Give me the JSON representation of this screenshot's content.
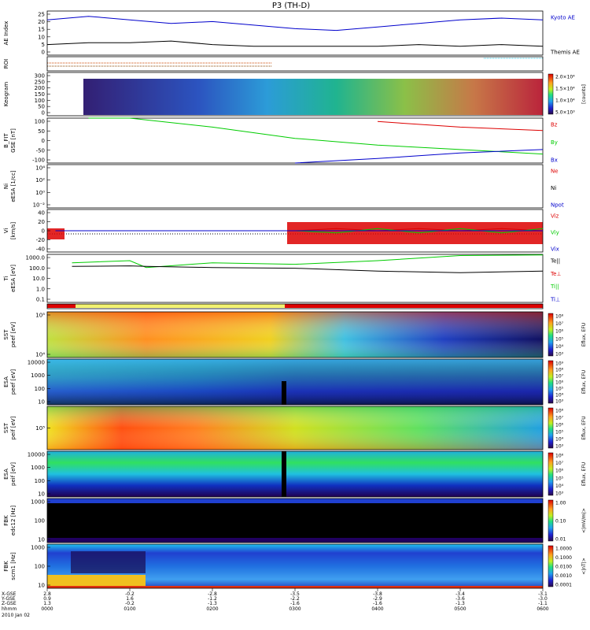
{
  "title": "P3 (TH-D)",
  "colors": {
    "black": "#000000",
    "blue": "#0000cc",
    "red": "#dd0000",
    "green": "#00cc00",
    "cyan": "#33ccee",
    "yellow": "#f2f270"
  },
  "panels": [
    {
      "id": "ae",
      "ylabel": "AE Index",
      "units": "",
      "yticks": [
        "25",
        "20",
        "15",
        "10",
        "5",
        "0"
      ],
      "legend": [
        {
          "text": "Kyoto AE",
          "color": "#0000cc"
        },
        {
          "text": "Themis AE",
          "color": "#000000"
        }
      ]
    },
    {
      "id": "roi",
      "ylabel": "ROI",
      "units": "",
      "yticks": [],
      "legend": []
    },
    {
      "id": "keogram",
      "ylabel": "Keogram",
      "units": "",
      "yticks": [
        "300",
        "250",
        "200",
        "150",
        "100",
        "50",
        "0"
      ],
      "colorbar": {
        "labels": [
          "2.0×10⁴",
          "1.5×10⁴",
          "1.0×10⁴",
          "5.0×10³"
        ],
        "title": "[counts]"
      }
    },
    {
      "id": "bfit",
      "ylabel": "B_FIT",
      "units": "GSE [nT]",
      "yticks": [
        "100",
        "50",
        "0",
        "-50",
        "-100"
      ],
      "legend": [
        {
          "text": "Bz",
          "color": "#dd0000"
        },
        {
          "text": "By",
          "color": "#00cc00"
        },
        {
          "text": "Bx",
          "color": "#0000cc"
        }
      ]
    },
    {
      "id": "ni",
      "ylabel": "Ni",
      "units": "eESA [1/cc]",
      "yticks": [
        "10⁴",
        "10²",
        "10⁰",
        "10⁻²"
      ],
      "legend": [
        {
          "text": "Ne",
          "color": "#dd0000"
        },
        {
          "text": "Ni",
          "color": "#000000"
        },
        {
          "text": "Npot",
          "color": "#0000cc"
        }
      ]
    },
    {
      "id": "vi",
      "ylabel": "Vi",
      "units": "[km/s]",
      "yticks": [
        "40",
        "20",
        "0",
        "-20",
        "-40"
      ],
      "legend": [
        {
          "text": "Viz",
          "color": "#dd0000"
        },
        {
          "text": "Viy",
          "color": "#00cc00"
        },
        {
          "text": "Vix",
          "color": "#0000cc"
        }
      ]
    },
    {
      "id": "ti",
      "ylabel": "Ti",
      "units": "eESA [eV]",
      "yticks": [
        "1000.0",
        "100.0",
        "10.0",
        "1.0",
        "0.1"
      ],
      "legend": [
        {
          "text": "Te||",
          "color": "#000000"
        },
        {
          "text": "Te⊥",
          "color": "#dd0000"
        },
        {
          "text": "Ti||",
          "color": "#00cc00"
        },
        {
          "text": "Ti⊥",
          "color": "#0000cc"
        }
      ]
    },
    {
      "id": "mode",
      "ylabel": "",
      "units": "",
      "yticks": [],
      "legend": []
    },
    {
      "id": "sst_e",
      "ylabel": "SST",
      "units": "peef [eV]",
      "yticks": [
        "10⁵",
        "10⁴"
      ],
      "colorbar": {
        "labels": [
          "10⁸",
          "10⁷",
          "10⁶",
          "10⁵",
          "10⁴",
          "10³"
        ],
        "title": "Eflux, EFU"
      }
    },
    {
      "id": "esa_e",
      "ylabel": "ESA",
      "units": "peef [eV]",
      "yticks": [
        "10000",
        "1000",
        "100",
        "10"
      ],
      "colorbar": {
        "labels": [
          "10⁹",
          "10⁸",
          "10⁷",
          "10⁶",
          "10⁵",
          "10⁴",
          "10³"
        ],
        "title": "Eflux, EFU"
      }
    },
    {
      "id": "sst_i",
      "ylabel": "SST",
      "units": "peif [eV]",
      "yticks": [
        "10⁵"
      ],
      "colorbar": {
        "labels": [
          "10⁸",
          "10⁷",
          "10⁶",
          "10⁵",
          "10⁴",
          "10³"
        ],
        "title": "Eflux, EFU"
      }
    },
    {
      "id": "esa_i",
      "ylabel": "ESA",
      "units": "peif [eV]",
      "yticks": [
        "10000",
        "1000",
        "100",
        "10"
      ],
      "colorbar": {
        "labels": [
          "10⁸",
          "10⁷",
          "10⁶",
          "10⁵",
          "10⁴",
          "10³"
        ],
        "title": "Eflux, EFU"
      }
    },
    {
      "id": "fbk_e",
      "ylabel": "FBK",
      "units": "edc12 [Hz]",
      "yticks": [
        "1000",
        "100",
        "10"
      ],
      "colorbar": {
        "labels": [
          "1.00",
          "0.10",
          "0.01"
        ],
        "title": "<|mV/m|>"
      }
    },
    {
      "id": "fbk_b",
      "ylabel": "FBK",
      "units": "scm1 [Hz]",
      "yticks": [
        "1000",
        "100",
        "10"
      ],
      "colorbar": {
        "labels": [
          "1.0000",
          "0.1000",
          "0.0100",
          "0.0010",
          "0.0001"
        ],
        "title": "<|nT|>"
      }
    }
  ],
  "time_axis": {
    "row_labels": [
      "X-GSE",
      "Y-GSE",
      "Z-GSE",
      "hhmm",
      "2010 Jan 02"
    ],
    "ticks": [
      {
        "x_gse": "2.8",
        "y_gse": "0.9",
        "z_gse": "1.3",
        "hhmm": "0000"
      },
      {
        "x_gse": "-0.2",
        "y_gse": "1.6",
        "z_gse": "-0.2",
        "hhmm": "0100"
      },
      {
        "x_gse": "-2.8",
        "y_gse": "-1.2",
        "z_gse": "-1.3",
        "hhmm": "0200"
      },
      {
        "x_gse": "-3.5",
        "y_gse": "-2.2",
        "z_gse": "-1.6",
        "hhmm": "0300"
      },
      {
        "x_gse": "-3.8",
        "y_gse": "-2.9",
        "z_gse": "-1.6",
        "hhmm": "0400"
      },
      {
        "x_gse": "-3.4",
        "y_gse": "-3.6",
        "z_gse": "-1.3",
        "hhmm": "0500"
      },
      {
        "x_gse": "-3.1",
        "y_gse": "-3.0",
        "z_gse": "-1.1",
        "hhmm": "0600"
      }
    ]
  },
  "chart_data": [
    {
      "type": "line",
      "panel": "ae",
      "ylim": [
        0,
        25
      ],
      "x": [
        0,
        0.5,
        1,
        1.5,
        2,
        2.5,
        3,
        3.5,
        4,
        4.5,
        5,
        5.5,
        6
      ],
      "series": [
        {
          "name": "Kyoto AE",
          "values": [
            20,
            22,
            20,
            18,
            19,
            17,
            15,
            14,
            16,
            18,
            20,
            21,
            20
          ]
        },
        {
          "name": "Themis AE",
          "values": [
            6,
            7,
            7,
            8,
            6,
            5,
            5,
            5,
            5,
            6,
            5,
            6,
            5
          ]
        }
      ]
    },
    {
      "type": "line",
      "panel": "bfit",
      "ylim": [
        -100,
        100
      ],
      "x": [
        0.5,
        1,
        2,
        3,
        4,
        5,
        6
      ],
      "series": [
        {
          "name": "Bz",
          "values": [
            null,
            null,
            null,
            null,
            85,
            60,
            45
          ]
        },
        {
          "name": "By",
          "values": [
            100,
            100,
            60,
            10,
            -20,
            -40,
            -60
          ]
        },
        {
          "name": "Bx",
          "values": [
            null,
            null,
            null,
            -100,
            -80,
            -55,
            -40
          ]
        }
      ]
    },
    {
      "type": "line",
      "panel": "vi",
      "ylim": [
        -50,
        50
      ],
      "x": [
        0.1,
        0.3,
        3.0,
        3.5,
        4,
        4.5,
        5,
        5.5,
        6
      ],
      "series": [
        {
          "name": "Viz",
          "values": [
            0,
            0,
            0,
            5,
            0,
            5,
            0,
            5,
            0
          ]
        },
        {
          "name": "Viy",
          "values": [
            0,
            0,
            0,
            -5,
            5,
            -5,
            5,
            -5,
            5
          ]
        },
        {
          "name": "Vix",
          "values": [
            0,
            0,
            0,
            0,
            0,
            0,
            0,
            0,
            0
          ]
        }
      ]
    },
    {
      "type": "line",
      "panel": "ti",
      "ylim": [
        0.1,
        1000
      ],
      "x": [
        0.3,
        1,
        1.2,
        2,
        3,
        4,
        5,
        6
      ],
      "series": [
        {
          "name": "Ti||",
          "values": [
            200,
            300,
            80,
            200,
            150,
            300,
            800,
            900
          ]
        },
        {
          "name": "Te||",
          "values": [
            100,
            110,
            100,
            80,
            70,
            40,
            30,
            40
          ]
        }
      ]
    }
  ]
}
